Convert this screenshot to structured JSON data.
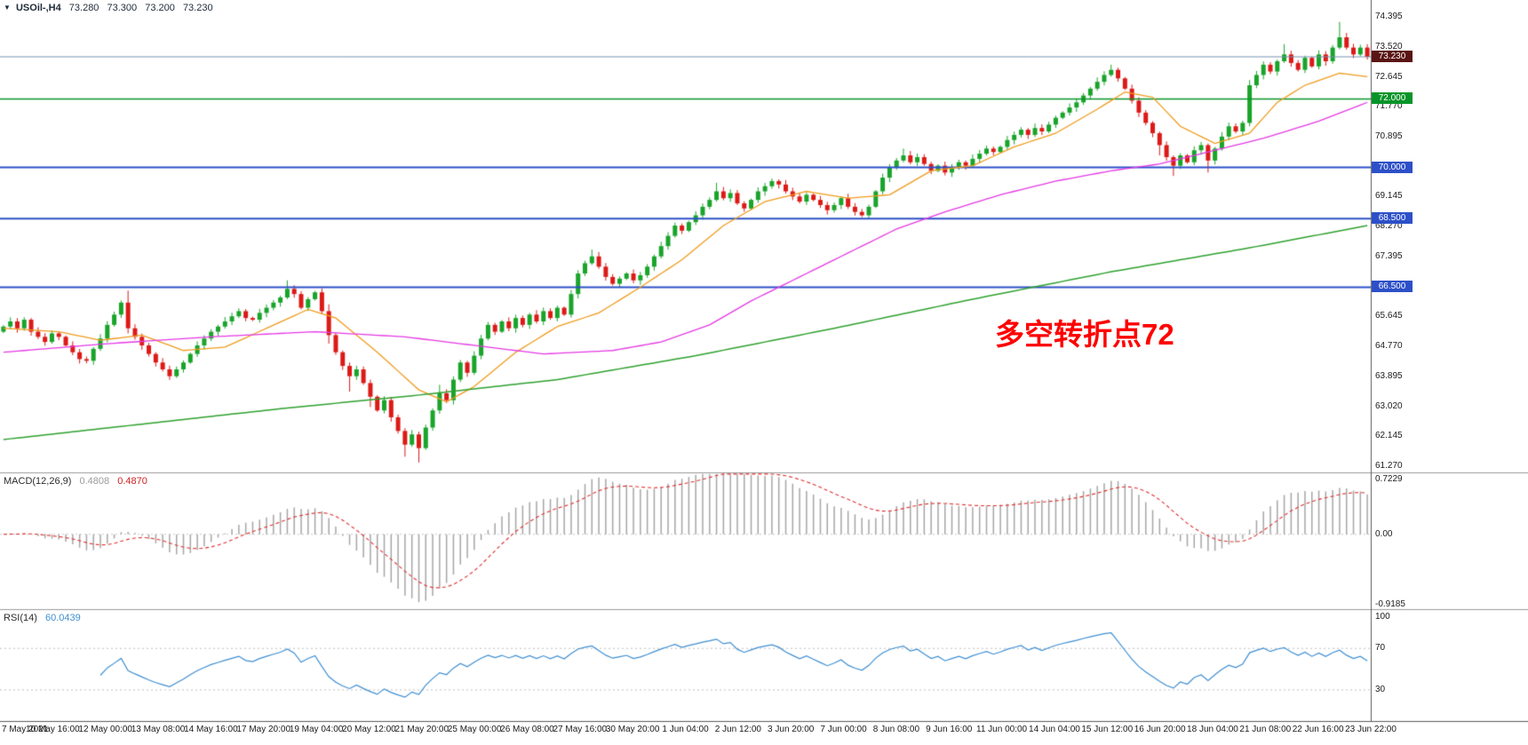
{
  "header": {
    "collapse_icon": "▼",
    "symbol_period": "USOil-,H4",
    "ohlc": {
      "open": "73.280",
      "high": "73.300",
      "low": "73.200",
      "close": "73.230"
    }
  },
  "annotation": {
    "text": "多空转折点72",
    "color": "#ff0000"
  },
  "colors": {
    "background": "#ffffff",
    "bull_candle": "#19a42a",
    "bear_candle": "#dc1a17",
    "blue_level": "#2d50c8",
    "green_level": "#089428",
    "current_line": "#7593b5",
    "current_badge_bg": "#5a1414",
    "macd_hist": "#a6a6a6",
    "macd_signal": "#e03030",
    "rsi_line": "#3f8fd2",
    "axis_text": "#1a1a1a",
    "separator": "#9a9a9a",
    "frame": "#5a5a5a"
  },
  "price_axis": {
    "labels": [
      "74.395",
      "73.520",
      "72.645",
      "71.770",
      "70.895",
      "70.020",
      "69.145",
      "68.270",
      "67.395",
      "66.520",
      "65.645",
      "64.770",
      "63.895",
      "63.020",
      "62.145",
      "61.270"
    ],
    "badges": [
      {
        "text": "73.230",
        "price": 73.23,
        "bg": "#5a1414",
        "type": "current-price"
      },
      {
        "text": "72.000",
        "price": 72.0,
        "bg": "#089428",
        "type": "level"
      },
      {
        "text": "70.000",
        "price": 70.0,
        "bg": "#2d50c8",
        "type": "level"
      },
      {
        "text": "68.500",
        "price": 68.5,
        "bg": "#2d50c8",
        "type": "level"
      },
      {
        "text": "66.500",
        "price": 66.5,
        "bg": "#2d50c8",
        "type": "level"
      }
    ]
  },
  "time_axis": {
    "labels": [
      "7 May 2021",
      "10 May 16:00",
      "12 May 00:00",
      "13 May 08:00",
      "14 May 16:00",
      "17 May 20:00",
      "19 May 04:00",
      "20 May 12:00",
      "21 May 20:00",
      "25 May 00:00",
      "26 May 08:00",
      "27 May 16:00",
      "30 May 20:00",
      "1 Jun 04:00",
      "2 Jun 12:00",
      "3 Jun 20:00",
      "7 Jun 00:00",
      "8 Jun 08:00",
      "9 Jun 16:00",
      "11 Jun 00:00",
      "14 Jun 04:00",
      "15 Jun 12:00",
      "16 Jun 20:00",
      "18 Jun 04:00",
      "21 Jun 08:00",
      "22 Jun 16:00",
      "23 Jun 22:00"
    ]
  },
  "panels": {
    "macd": {
      "label": "MACD(12,26,9)",
      "value_main": "0.4808",
      "value_signal": "0.4870",
      "scale": [
        {
          "text": "0.7229",
          "v": 0.7229
        },
        {
          "text": "0.00",
          "v": 0.0
        },
        {
          "text": "-0.9185",
          "v": -0.9185
        }
      ]
    },
    "rsi": {
      "label": "RSI(14)",
      "value": "60.0439",
      "scale": [
        {
          "text": "100",
          "v": 100
        },
        {
          "text": "70",
          "v": 70
        },
        {
          "text": "30",
          "v": 30
        }
      ]
    }
  },
  "chart_data": {
    "type": "candlestick",
    "title": "USOil-,H4",
    "timeframe": "H4",
    "x_axis_labels": [
      "7 May 2021",
      "10 May 16:00",
      "12 May 00:00",
      "13 May 08:00",
      "14 May 16:00",
      "17 May 20:00",
      "19 May 04:00",
      "20 May 12:00",
      "21 May 20:00",
      "25 May 00:00",
      "26 May 08:00",
      "27 May 16:00",
      "30 May 20:00",
      "1 Jun 04:00",
      "2 Jun 12:00",
      "3 Jun 20:00",
      "7 Jun 00:00",
      "8 Jun 08:00",
      "9 Jun 16:00",
      "11 Jun 00:00",
      "14 Jun 04:00",
      "15 Jun 12:00",
      "16 Jun 20:00",
      "18 Jun 04:00",
      "21 Jun 08:00",
      "22 Jun 16:00",
      "23 Jun 22:00"
    ],
    "price_range_visible": [
      61.09,
      74.89
    ],
    "y_tick_step": 0.875,
    "candles": {
      "note": "approximate closes read from chart; open equals previous close; wicks approximated",
      "first_open": 65.2,
      "open_equals_previous_close": true,
      "default_wick": 0.1,
      "closes": [
        65.35,
        65.5,
        65.3,
        65.55,
        65.2,
        65.05,
        64.9,
        65.15,
        65.05,
        64.8,
        64.6,
        64.4,
        64.35,
        64.7,
        65.0,
        65.4,
        65.7,
        66.05,
        65.3,
        65.05,
        64.8,
        64.55,
        64.3,
        64.1,
        63.9,
        64.1,
        64.3,
        64.55,
        64.8,
        65.0,
        65.2,
        65.35,
        65.5,
        65.65,
        65.8,
        65.6,
        65.55,
        65.75,
        65.9,
        66.05,
        66.2,
        66.45,
        66.3,
        65.9,
        66.15,
        66.35,
        65.8,
        65.1,
        64.6,
        64.2,
        63.9,
        64.1,
        63.7,
        63.3,
        62.9,
        63.2,
        62.7,
        62.3,
        61.9,
        62.2,
        61.8,
        62.4,
        62.9,
        63.4,
        63.2,
        63.8,
        64.3,
        64.0,
        64.5,
        65.0,
        65.4,
        65.2,
        65.5,
        65.3,
        65.6,
        65.4,
        65.7,
        65.5,
        65.8,
        65.6,
        65.9,
        65.7,
        66.3,
        66.9,
        67.2,
        67.4,
        67.1,
        66.8,
        66.6,
        66.75,
        66.9,
        66.7,
        66.85,
        67.1,
        67.4,
        67.7,
        68.0,
        68.3,
        68.15,
        68.4,
        68.6,
        68.85,
        69.05,
        69.3,
        69.1,
        69.25,
        68.95,
        68.8,
        69.05,
        69.3,
        69.45,
        69.6,
        69.5,
        69.3,
        69.15,
        69.0,
        69.2,
        69.05,
        68.9,
        68.75,
        68.9,
        69.1,
        68.85,
        68.7,
        68.6,
        68.85,
        69.3,
        69.7,
        70.0,
        70.2,
        70.35,
        70.15,
        70.3,
        70.1,
        69.9,
        70.05,
        69.85,
        70.0,
        70.15,
        70.05,
        70.25,
        70.4,
        70.55,
        70.45,
        70.6,
        70.8,
        70.95,
        71.1,
        70.95,
        71.15,
        71.05,
        71.25,
        71.45,
        71.6,
        71.75,
        71.9,
        72.1,
        72.3,
        72.5,
        72.7,
        72.85,
        72.6,
        72.3,
        71.95,
        71.6,
        71.3,
        71.0,
        70.65,
        70.3,
        70.05,
        70.35,
        70.15,
        70.5,
        70.65,
        70.2,
        70.55,
        70.9,
        71.2,
        71.05,
        71.3,
        72.4,
        72.7,
        73.0,
        72.8,
        73.1,
        73.3,
        73.05,
        72.85,
        73.2,
        72.95,
        73.3,
        73.1,
        73.5,
        73.8,
        73.5,
        73.3,
        73.5,
        73.23
      ],
      "wick_overrides": {
        "18": [
          0.35,
          0.15
        ],
        "41": [
          0.25,
          0.05
        ],
        "47": [
          0.2,
          0.25
        ],
        "50": [
          0.1,
          0.45
        ],
        "53": [
          0.1,
          0.3
        ],
        "58": [
          0.08,
          0.35
        ],
        "60": [
          0.08,
          0.42
        ],
        "63": [
          0.25,
          0.1
        ],
        "85": [
          0.2,
          0.05
        ],
        "103": [
          0.25,
          0.05
        ],
        "130": [
          0.2,
          0.05
        ],
        "160": [
          0.15,
          0.05
        ],
        "167": [
          0.05,
          0.3
        ],
        "169": [
          0.05,
          0.3
        ],
        "174": [
          0.05,
          0.35
        ],
        "180": [
          0.15,
          0.1
        ],
        "185": [
          0.3,
          0.05
        ],
        "193": [
          0.45,
          0.05
        ],
        "197": [
          0.1,
          0.08
        ]
      }
    },
    "horizontal_lines": [
      {
        "price": 73.23,
        "color": "#7593b5",
        "width": 1,
        "label": "73.230",
        "role": "current-price"
      },
      {
        "price": 72.0,
        "color": "#089428",
        "width": 1.5,
        "label": "72.000",
        "role": "support-resistance"
      },
      {
        "price": 70.0,
        "color": "#2d50c8",
        "width": 2,
        "label": "70.000",
        "role": "support-resistance"
      },
      {
        "price": 68.5,
        "color": "#2d50c8",
        "width": 2,
        "label": "68.500",
        "role": "support-resistance"
      },
      {
        "price": 66.5,
        "color": "#2d50c8",
        "width": 2,
        "label": "66.500",
        "role": "support-resistance"
      }
    ],
    "moving_averages": [
      {
        "name": "ma-fast-orange",
        "color": "#f09c1e",
        "width": 1.3,
        "points": [
          [
            0,
            65.3
          ],
          [
            8,
            65.2
          ],
          [
            14,
            64.95
          ],
          [
            20,
            65.1
          ],
          [
            26,
            64.65
          ],
          [
            32,
            64.75
          ],
          [
            38,
            65.3
          ],
          [
            44,
            65.85
          ],
          [
            48,
            65.6
          ],
          [
            54,
            64.6
          ],
          [
            60,
            63.5
          ],
          [
            64,
            63.15
          ],
          [
            68,
            63.6
          ],
          [
            74,
            64.6
          ],
          [
            80,
            65.35
          ],
          [
            86,
            65.75
          ],
          [
            92,
            66.5
          ],
          [
            98,
            67.3
          ],
          [
            104,
            68.3
          ],
          [
            110,
            69.0
          ],
          [
            116,
            69.3
          ],
          [
            122,
            69.1
          ],
          [
            128,
            69.2
          ],
          [
            134,
            69.9
          ],
          [
            140,
            70.05
          ],
          [
            146,
            70.6
          ],
          [
            152,
            71.0
          ],
          [
            158,
            71.7
          ],
          [
            162,
            72.2
          ],
          [
            166,
            72.05
          ],
          [
            170,
            71.2
          ],
          [
            175,
            70.7
          ],
          [
            180,
            71.0
          ],
          [
            184,
            71.9
          ],
          [
            188,
            72.4
          ],
          [
            193,
            72.75
          ],
          [
            197,
            72.65
          ]
        ]
      },
      {
        "name": "ma-mid-magenta",
        "color": "#e53ae5",
        "width": 1.3,
        "points": [
          [
            0,
            64.6
          ],
          [
            15,
            64.85
          ],
          [
            30,
            65.05
          ],
          [
            45,
            65.2
          ],
          [
            58,
            65.05
          ],
          [
            68,
            64.8
          ],
          [
            78,
            64.55
          ],
          [
            88,
            64.65
          ],
          [
            95,
            64.9
          ],
          [
            102,
            65.4
          ],
          [
            108,
            66.1
          ],
          [
            115,
            66.8
          ],
          [
            122,
            67.5
          ],
          [
            129,
            68.2
          ],
          [
            136,
            68.7
          ],
          [
            144,
            69.2
          ],
          [
            152,
            69.6
          ],
          [
            160,
            69.9
          ],
          [
            167,
            70.1
          ],
          [
            174,
            70.45
          ],
          [
            182,
            70.85
          ],
          [
            190,
            71.35
          ],
          [
            197,
            71.9
          ]
        ]
      },
      {
        "name": "ma-slow-green",
        "color": "#2fa12f",
        "width": 1.5,
        "points": [
          [
            0,
            62.05
          ],
          [
            20,
            62.5
          ],
          [
            40,
            62.95
          ],
          [
            60,
            63.35
          ],
          [
            80,
            63.8
          ],
          [
            100,
            64.5
          ],
          [
            120,
            65.3
          ],
          [
            140,
            66.15
          ],
          [
            160,
            66.95
          ],
          [
            180,
            67.65
          ],
          [
            197,
            68.3
          ]
        ]
      }
    ],
    "macd": {
      "params": [
        12,
        26,
        9
      ],
      "current_main": 0.4808,
      "current_signal": 0.487,
      "scale_max": 0.7229,
      "scale_min": -0.9185
    },
    "rsi": {
      "period": 14,
      "current": 60.0439,
      "levels": [
        70,
        30
      ]
    }
  }
}
